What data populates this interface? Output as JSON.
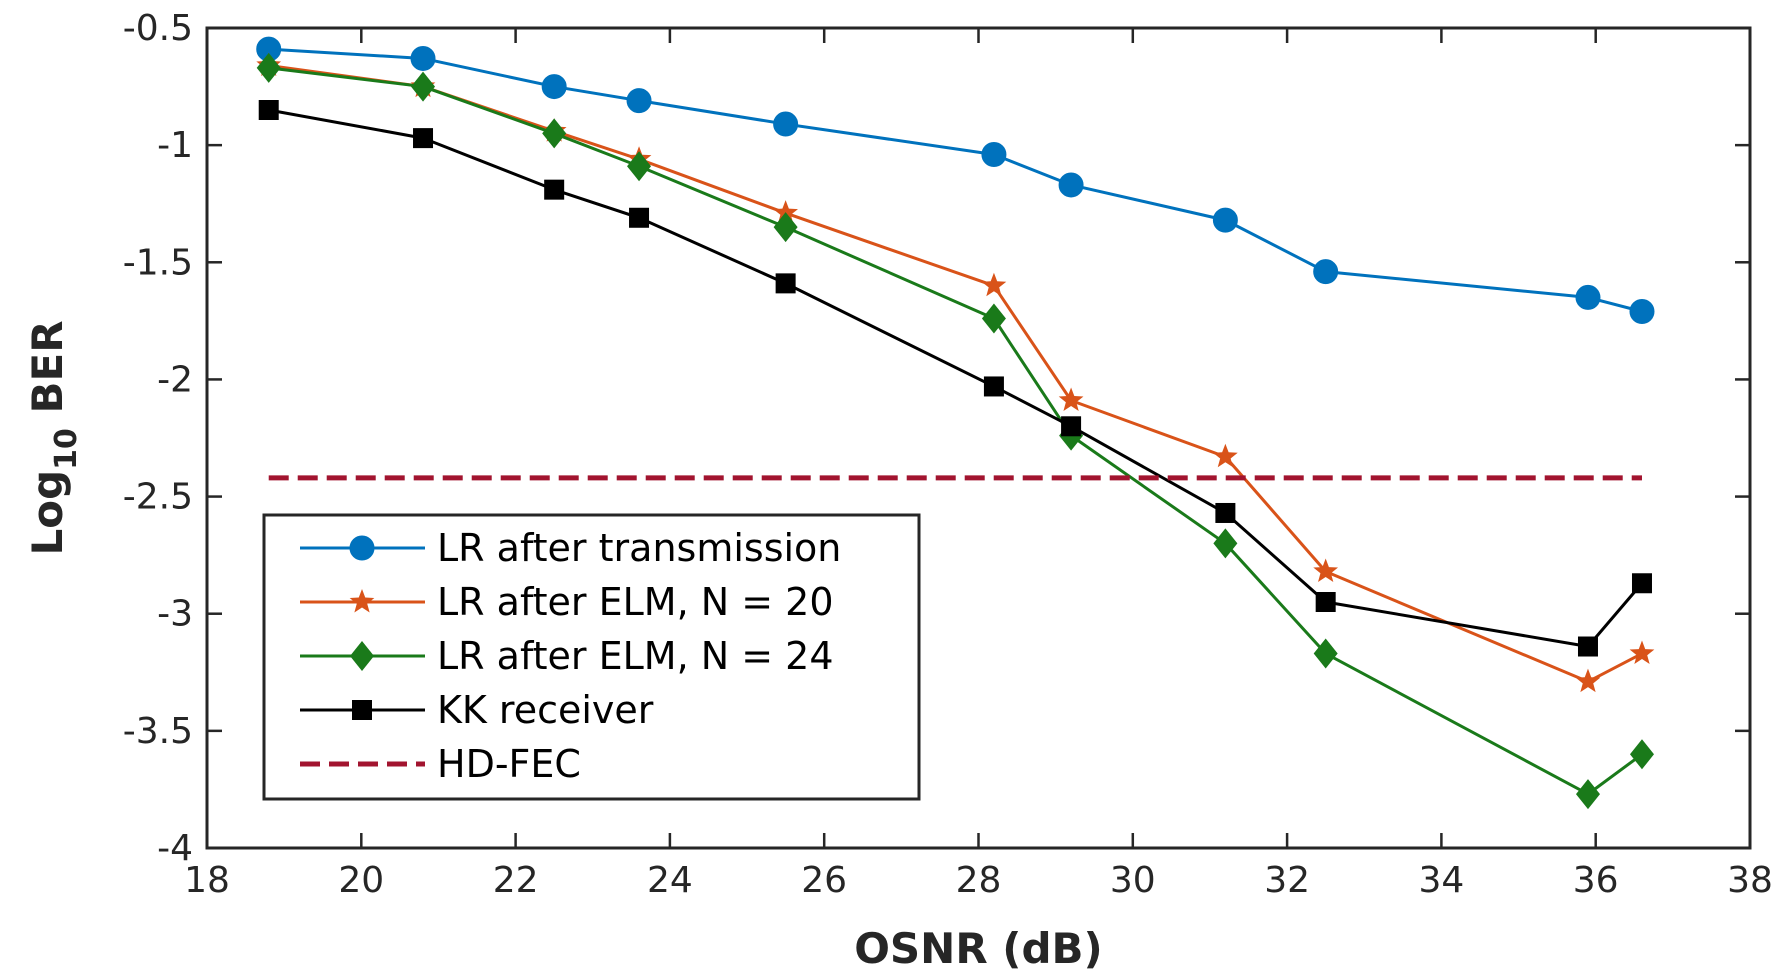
{
  "chart_data": {
    "type": "line",
    "title": "",
    "xlabel": "OSNR (dB)",
    "ylabel_main": "Log",
    "ylabel_sub": "10",
    "ylabel_rest": " BER",
    "xlim": [
      18,
      38
    ],
    "ylim": [
      -4,
      -0.5
    ],
    "xticks": [
      18,
      20,
      22,
      24,
      26,
      28,
      30,
      32,
      34,
      36,
      38
    ],
    "yticks": [
      -0.5,
      -1,
      -1.5,
      -2,
      -2.5,
      -3,
      -3.5,
      -4
    ],
    "xtick_labels": [
      "18",
      "20",
      "22",
      "24",
      "26",
      "28",
      "30",
      "32",
      "34",
      "36",
      "38"
    ],
    "ytick_labels": [
      "-0.5",
      "-1",
      "-1.5",
      "-2",
      "-2.5",
      "-3",
      "-3.5",
      "-4"
    ],
    "legend_position": "bottom-left",
    "series": [
      {
        "name": "LR after transmission",
        "color": "#0072BD",
        "marker": "circle",
        "x": [
          18.8,
          20.8,
          22.5,
          23.6,
          25.5,
          28.2,
          29.2,
          31.2,
          32.5,
          35.9,
          36.6
        ],
        "y": [
          -0.59,
          -0.63,
          -0.75,
          -0.81,
          -0.91,
          -1.04,
          -1.17,
          -1.32,
          -1.54,
          -1.65,
          -1.71
        ]
      },
      {
        "name": "LR after ELM, N = 20",
        "color": "#D95319",
        "marker": "star",
        "x": [
          18.8,
          20.8,
          22.5,
          23.6,
          25.5,
          28.2,
          29.2,
          31.2,
          32.5,
          35.9,
          36.6
        ],
        "y": [
          -0.66,
          -0.75,
          -0.94,
          -1.06,
          -1.29,
          -1.6,
          -2.09,
          -2.33,
          -2.82,
          -3.29,
          -3.17
        ]
      },
      {
        "name": "LR after ELM, N = 24",
        "color": "#1A7A1A",
        "marker": "diamond",
        "x": [
          18.8,
          20.8,
          22.5,
          23.6,
          25.5,
          28.2,
          29.2,
          31.2,
          32.5,
          35.9,
          36.6
        ],
        "y": [
          -0.67,
          -0.75,
          -0.95,
          -1.09,
          -1.35,
          -1.74,
          -2.24,
          -2.7,
          -3.17,
          -3.77,
          -3.6
        ]
      },
      {
        "name": "KK receiver",
        "color": "#000000",
        "marker": "square",
        "x": [
          18.8,
          20.8,
          22.5,
          23.6,
          25.5,
          28.2,
          29.2,
          31.2,
          32.5,
          35.9,
          36.6
        ],
        "y": [
          -0.85,
          -0.97,
          -1.19,
          -1.31,
          -1.59,
          -2.03,
          -2.2,
          -2.57,
          -2.95,
          -3.14,
          -2.87
        ]
      },
      {
        "name": "HD-FEC",
        "color": "#A2142F",
        "marker": "none",
        "dashed": true,
        "x": [
          18.8,
          36.6
        ],
        "y": [
          -2.42,
          -2.42
        ]
      }
    ]
  }
}
